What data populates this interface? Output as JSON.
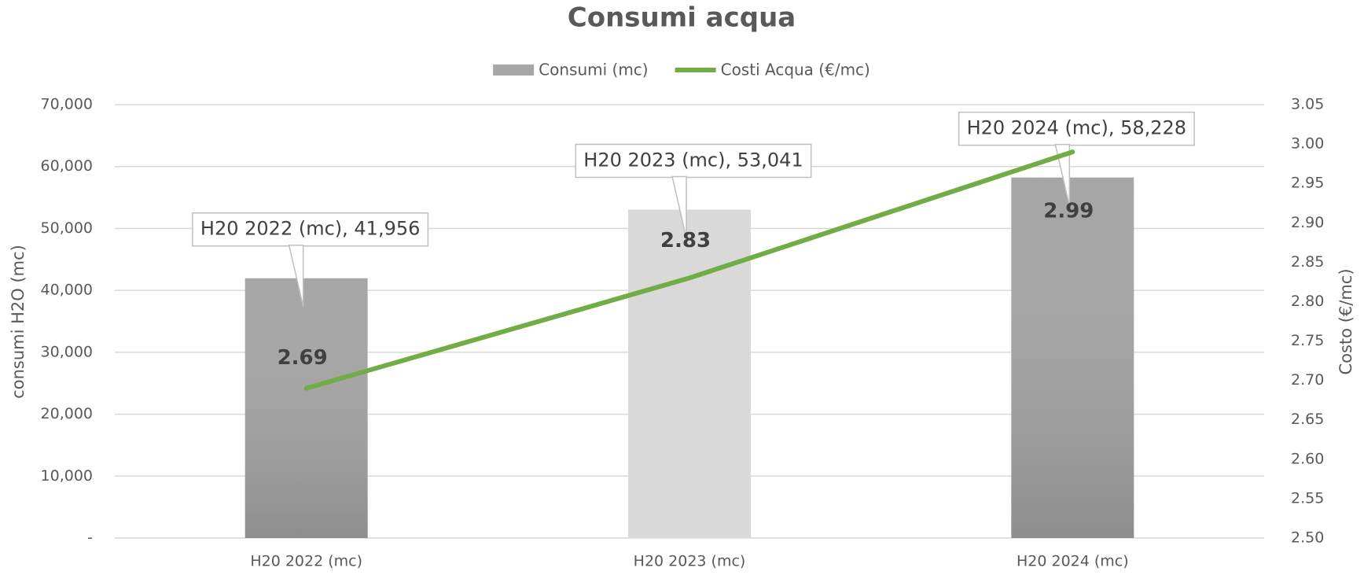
{
  "chart_data": {
    "type": "bar-line",
    "title": "Consumi acqua",
    "categories": [
      "H20 2022 (mc)",
      "H20 2023 (mc)",
      "H20 2024 (mc)"
    ],
    "series": [
      {
        "name": "Consumi (mc)",
        "type": "bar",
        "color": "#a6a6a6",
        "point_colors": [
          "#a6a6a6",
          "#d9d9d9",
          "#a6a6a6"
        ],
        "values": [
          41956,
          53041,
          58228
        ],
        "value_labels": [
          "H20 2022 (mc),  41,956",
          "H20 2023 (mc),  53,041",
          "H20 2024 (mc),  58,228"
        ]
      },
      {
        "name": "Costi Acqua (€/mc)",
        "type": "line",
        "color": "#70ad47",
        "axis": "y2",
        "values": [
          2.69,
          2.83,
          2.99
        ]
      }
    ],
    "ylabel": "consumi H2O (mc)",
    "y2label": "Costo (€/mc)",
    "ylim": [
      0,
      70000
    ],
    "yticks": [
      {
        "value": 0,
        "label": "-"
      },
      {
        "value": 10000,
        "label": "10,000"
      },
      {
        "value": 20000,
        "label": "20,000"
      },
      {
        "value": 30000,
        "label": "30,000"
      },
      {
        "value": 40000,
        "label": "40,000"
      },
      {
        "value": 50000,
        "label": "50,000"
      },
      {
        "value": 60000,
        "label": "60,000"
      },
      {
        "value": 70000,
        "label": "70,000"
      }
    ],
    "y2lim": [
      2.5,
      3.05
    ],
    "y2ticks": [
      {
        "value": 2.5,
        "label": "2.50"
      },
      2.55,
      {
        "value": 2.6,
        "label": "2.60"
      },
      2.65,
      {
        "value": 2.7,
        "label": "2.70"
      },
      2.75,
      {
        "value": 2.8,
        "label": "2.80"
      },
      2.85,
      {
        "value": 2.9,
        "label": "2.90"
      },
      2.95,
      {
        "value": 3.0,
        "label": "3.00"
      },
      3.05
    ],
    "grid": true,
    "legend": "top"
  }
}
